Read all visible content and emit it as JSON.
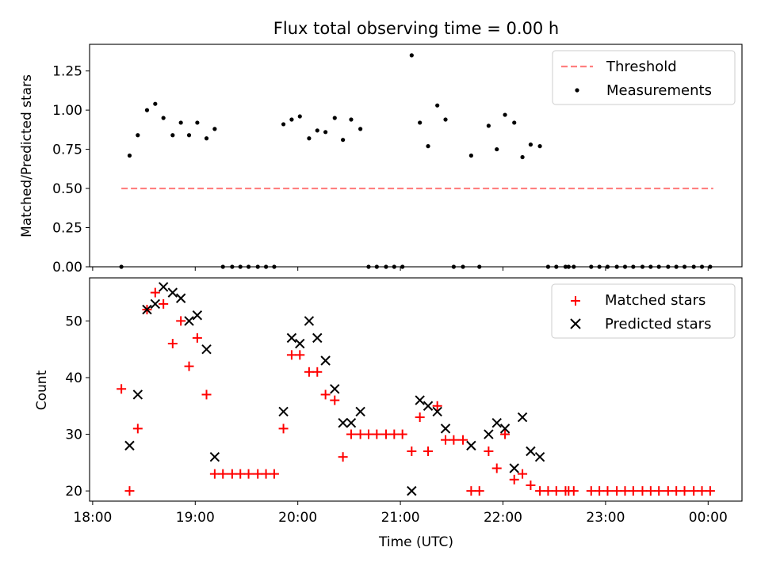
{
  "chart_data": [
    {
      "type": "scatter",
      "title": "Flux total observing time = 0.00 h",
      "xlabel": "",
      "ylabel": "Matched/Predicted stars",
      "xlim": [
        17.97,
        24.33
      ],
      "ylim": [
        0.0,
        1.42
      ],
      "yticks": [
        0.0,
        0.25,
        0.5,
        0.75,
        1.0,
        1.25
      ],
      "ytick_labels": [
        "0.00",
        "0.25",
        "0.50",
        "0.75",
        "1.00",
        "1.25"
      ],
      "legend_position": "top-right",
      "series": [
        {
          "name": "Threshold",
          "kind": "dashed-line",
          "color": "#ff7f7f",
          "x": [
            18.28,
            24.05
          ],
          "y": [
            0.5,
            0.5
          ]
        },
        {
          "name": "Measurements",
          "kind": "dot",
          "color": "#000000",
          "x": [
            18.28,
            18.36,
            18.44,
            18.53,
            18.61,
            18.69,
            18.78,
            18.86,
            18.94,
            19.02,
            19.11,
            19.19,
            19.27,
            19.36,
            19.44,
            19.52,
            19.61,
            19.69,
            19.77,
            19.86,
            19.94,
            20.02,
            20.11,
            20.19,
            20.27,
            20.36,
            20.44,
            20.52,
            20.61,
            20.69,
            20.77,
            20.86,
            20.94,
            21.02,
            21.11,
            21.19,
            21.27,
            21.36,
            21.44,
            21.52,
            21.61,
            21.69,
            21.77,
            21.86,
            21.94,
            22.02,
            22.11,
            22.19,
            22.27,
            22.36,
            22.44,
            22.52,
            22.61,
            22.64,
            22.69,
            22.86,
            22.94,
            23.02,
            23.11,
            23.19,
            23.27,
            23.36,
            23.44,
            23.52,
            23.61,
            23.69,
            23.77,
            23.86,
            23.94,
            24.02
          ],
          "y": [
            0.0,
            0.71,
            0.84,
            1.0,
            1.04,
            0.95,
            0.84,
            0.92,
            0.84,
            0.92,
            0.82,
            0.88,
            0.0,
            0.0,
            0.0,
            0.0,
            0.0,
            0.0,
            0.0,
            0.91,
            0.94,
            0.96,
            0.82,
            0.87,
            0.86,
            0.95,
            0.81,
            0.94,
            0.88,
            0.0,
            0.0,
            0.0,
            0.0,
            0.0,
            1.35,
            0.92,
            0.77,
            1.03,
            0.94,
            0.0,
            0.0,
            0.71,
            0.0,
            0.9,
            0.75,
            0.97,
            0.92,
            0.7,
            0.78,
            0.77,
            0.0,
            0.0,
            0.0,
            0.0,
            0.0,
            0.0,
            0.0,
            0.0,
            0.0,
            0.0,
            0.0,
            0.0,
            0.0,
            0.0,
            0.0,
            0.0,
            0.0,
            0.0,
            0.0,
            0.0
          ]
        }
      ]
    },
    {
      "type": "scatter",
      "title": "",
      "xlabel": "Time (UTC)",
      "ylabel": "Count",
      "xlim": [
        17.97,
        24.33
      ],
      "ylim": [
        18.2,
        57.6
      ],
      "yticks": [
        20,
        30,
        40,
        50
      ],
      "ytick_labels": [
        "20",
        "30",
        "40",
        "50"
      ],
      "xticks": [
        18,
        19,
        20,
        21,
        22,
        23,
        24
      ],
      "xtick_labels": [
        "18:00",
        "19:00",
        "20:00",
        "21:00",
        "22:00",
        "23:00",
        "00:00"
      ],
      "legend_position": "top-right",
      "series": [
        {
          "name": "Matched stars",
          "kind": "plus",
          "color": "#ff0000",
          "x": [
            18.28,
            18.36,
            18.44,
            18.53,
            18.61,
            18.69,
            18.78,
            18.86,
            18.94,
            19.02,
            19.11,
            19.19,
            19.27,
            19.36,
            19.44,
            19.52,
            19.61,
            19.69,
            19.77,
            19.86,
            19.94,
            20.02,
            20.11,
            20.19,
            20.27,
            20.36,
            20.44,
            20.52,
            20.61,
            20.69,
            20.77,
            20.86,
            20.94,
            21.02,
            21.11,
            21.19,
            21.27,
            21.36,
            21.44,
            21.52,
            21.61,
            21.69,
            21.77,
            21.86,
            21.94,
            22.02,
            22.11,
            22.19,
            22.27,
            22.36,
            22.44,
            22.52,
            22.61,
            22.64,
            22.69,
            22.86,
            22.94,
            23.02,
            23.11,
            23.19,
            23.27,
            23.36,
            23.44,
            23.52,
            23.61,
            23.69,
            23.77,
            23.86,
            23.94,
            24.02
          ],
          "y": [
            38,
            20,
            31,
            52,
            55,
            53,
            46,
            50,
            42,
            47,
            37,
            23,
            23,
            23,
            23,
            23,
            23,
            23,
            23,
            31,
            44,
            44,
            41,
            41,
            37,
            36,
            26,
            30,
            30,
            30,
            30,
            30,
            30,
            30,
            27,
            33,
            27,
            35,
            29,
            29,
            29,
            20,
            20,
            27,
            24,
            30,
            22,
            23,
            21,
            20,
            20,
            20,
            20,
            20,
            20,
            20,
            20,
            20,
            20,
            20,
            20,
            20,
            20,
            20,
            20,
            20,
            20,
            20,
            20,
            20
          ]
        },
        {
          "name": "Predicted stars",
          "kind": "cross",
          "color": "#000000",
          "x": [
            18.36,
            18.44,
            18.53,
            18.61,
            18.69,
            18.78,
            18.86,
            18.94,
            19.02,
            19.11,
            19.19,
            19.86,
            19.94,
            20.02,
            20.11,
            20.19,
            20.27,
            20.36,
            20.44,
            20.52,
            20.61,
            21.11,
            21.19,
            21.27,
            21.36,
            21.44,
            21.69,
            21.86,
            21.94,
            22.02,
            22.11,
            22.19,
            22.27,
            22.36
          ],
          "y": [
            28,
            37,
            52,
            53,
            56,
            55,
            54,
            50,
            51,
            45,
            26,
            34,
            47,
            46,
            50,
            47,
            43,
            38,
            32,
            32,
            34,
            20,
            36,
            35,
            34,
            31,
            28,
            30,
            32,
            31,
            24,
            33,
            27,
            26
          ]
        }
      ]
    }
  ]
}
